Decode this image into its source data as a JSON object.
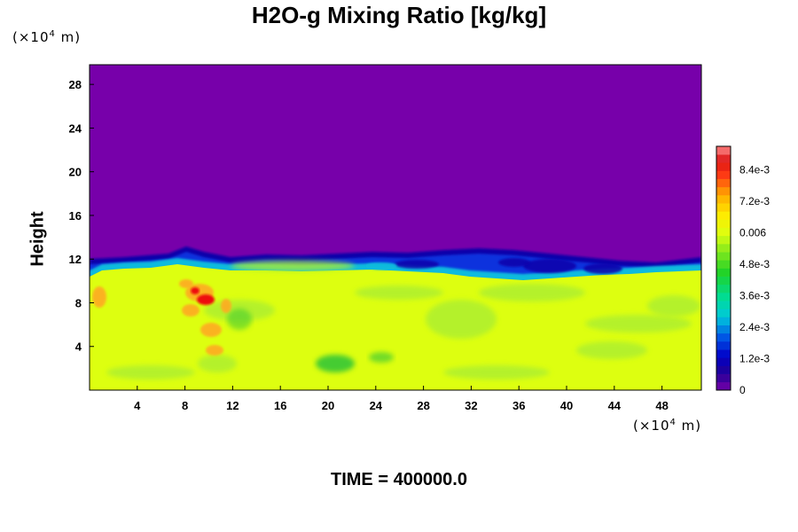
{
  "chart_data": {
    "type": "heatmap",
    "title": "H2O-g Mixing Ratio [kg/kg]",
    "ylabel": "Height",
    "xlabel": "",
    "unit_label_prefix": "(×10",
    "unit_label_exp": "4",
    "unit_label_suffix": " m)",
    "x_ticks": [
      "4",
      "8",
      "12",
      "16",
      "20",
      "24",
      "28",
      "32",
      "36",
      "40",
      "44",
      "48"
    ],
    "y_ticks": [
      "4",
      "8",
      "12",
      "16",
      "20",
      "24",
      "28"
    ],
    "xlim": [
      0,
      51.3
    ],
    "ylim": [
      0,
      29.8
    ],
    "colorbar": {
      "labels": [
        "0",
        "1.2e-3",
        "2.4e-3",
        "3.6e-3",
        "4.8e-3",
        "0.006",
        "7.2e-3",
        "8.4e-3"
      ],
      "label_values": [
        0,
        0.0012,
        0.0024,
        0.0036,
        0.0048,
        0.006,
        0.0072,
        0.0084
      ],
      "range": [
        0,
        0.0093
      ],
      "levels": 30
    },
    "colors": {
      "upper_dry": "#7700aa",
      "moist_layer": "#ddff10",
      "moist_pale": "#aaee33",
      "moist_green": "#44cc33",
      "tropopause_blue": "#1133dd",
      "tropopause_navy": "#1100aa",
      "tropopause_cyan": "#11bbdd",
      "orange": "#ffaa22",
      "red": "#ee1111"
    },
    "time_label": "TIME = 400000.0"
  }
}
